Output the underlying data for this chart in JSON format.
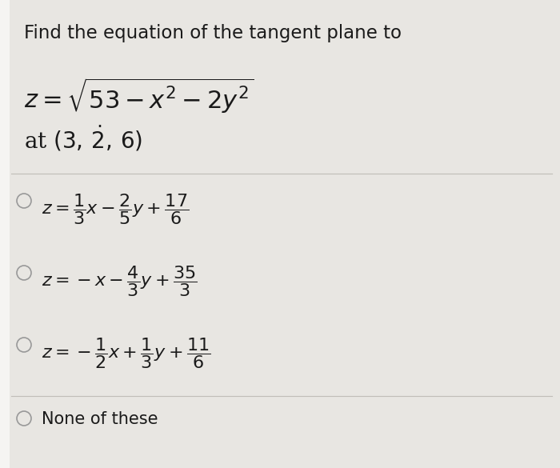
{
  "background_color": "#d8d5d0",
  "panel_color": "#e8e6e2",
  "left_strip_color": "#f5f4f2",
  "title_text": "Find the equation of the tangent plane to",
  "text_color": "#1a1a1a",
  "circle_color": "#999999",
  "separator_color": "#c0bdb8",
  "title_fontsize": 16.5,
  "eq_fontsize": 20,
  "option_fontsize": 16,
  "none_fontsize": 15,
  "fig_width": 7.0,
  "fig_height": 5.85,
  "dpi": 100
}
